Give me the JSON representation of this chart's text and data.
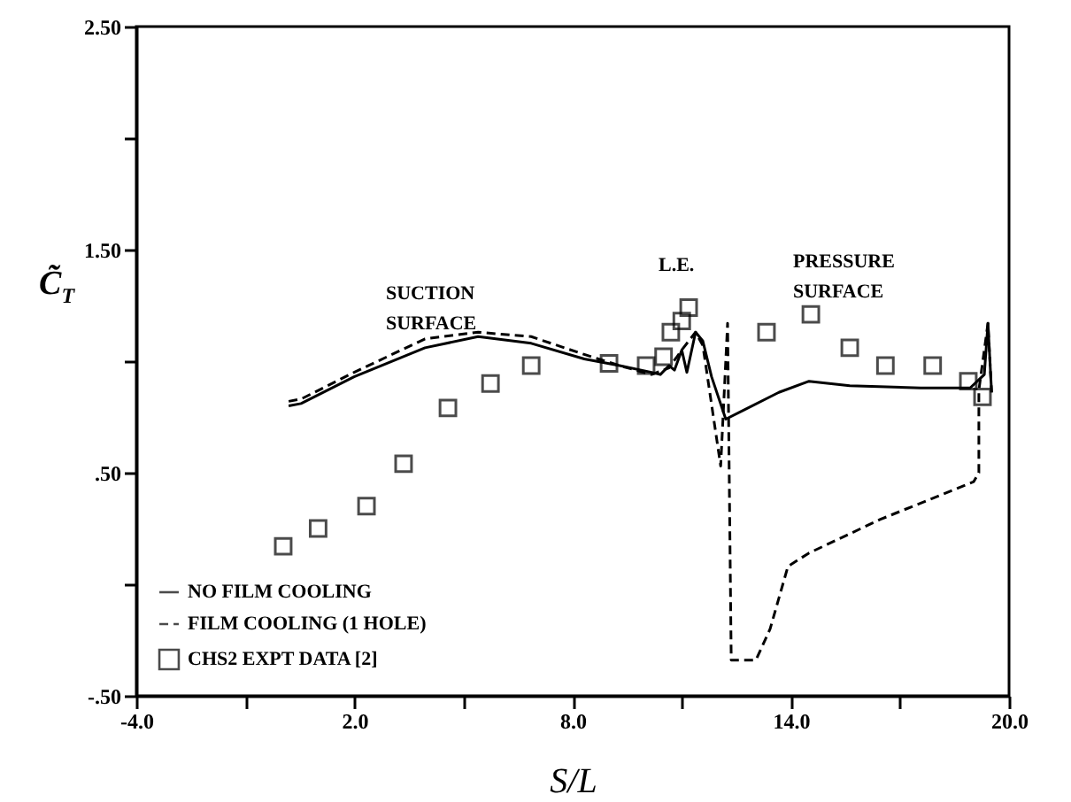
{
  "chart_data": {
    "type": "line",
    "xlabel": "S/L",
    "ylabel": "C̃$_{T}$",
    "xlim": [
      -4,
      20
    ],
    "xticks": [
      {
        "value": -4,
        "label": "-4.0"
      },
      {
        "value": -1,
        "label": null
      },
      {
        "value": 2,
        "label": "2.0"
      },
      {
        "value": 5,
        "label": null
      },
      {
        "value": 8,
        "label": "8.0"
      },
      {
        "value": 11,
        "label": null
      },
      {
        "value": 14,
        "label": "14.0"
      },
      {
        "value": 17,
        "label": null
      },
      {
        "value": 20,
        "label": "20.0"
      }
    ],
    "ylim": [
      -0.5,
      2.5
    ],
    "yticks": [
      {
        "value": -0.5,
        "label": "-.50"
      },
      {
        "value": 0,
        "label": null
      },
      {
        "value": 0.5,
        "label": ".50"
      },
      {
        "value": 1,
        "label": null
      },
      {
        "value": 1.5,
        "label": "1.50"
      },
      {
        "value": 2,
        "label": null
      },
      {
        "value": 2.5,
        "label": "2.50"
      }
    ],
    "legend": "bottom left",
    "annotations": [
      "SUCTION\nSURFACE",
      "L.E.",
      "PRESSURE\nSURFACE"
    ],
    "series": [
      {
        "name": "NO FILM COOLING",
        "line_style": "solid",
        "color": "#000000",
        "x": [
          0.19,
          0.53,
          1.99,
          3.94,
          5.4,
          6.86,
          8.32,
          9.29,
          10.17,
          10.41,
          10.65,
          10.8,
          11.0,
          11.14,
          11.38,
          11.58,
          11.82,
          12.21,
          12.7,
          13.67,
          14.5,
          15.62,
          17.57,
          18.93,
          19.32,
          19.42,
          19.52
        ],
        "values": [
          0.8,
          0.81,
          0.93,
          1.06,
          1.11,
          1.08,
          1.01,
          0.98,
          0.95,
          0.94,
          0.98,
          0.96,
          1.05,
          0.95,
          1.13,
          1.09,
          0.93,
          0.74,
          0.78,
          0.86,
          0.91,
          0.89,
          0.88,
          0.88,
          0.94,
          1.17,
          0.86
        ]
      },
      {
        "name": "FILM COOLING (1 HOLE)",
        "line_style": "dashed",
        "color": "#000000",
        "x": [
          0.19,
          0.53,
          1.99,
          3.94,
          5.4,
          6.86,
          8.32,
          9.29,
          10.17,
          10.65,
          11.0,
          11.38,
          11.58,
          12.07,
          12.26,
          12.36,
          13.04,
          13.43,
          13.92,
          14.5,
          16.45,
          19.03,
          19.17,
          19.17,
          19.42,
          19.52
        ],
        "values": [
          0.82,
          0.83,
          0.95,
          1.1,
          1.13,
          1.11,
          1.03,
          0.98,
          0.94,
          0.97,
          1.05,
          1.13,
          1.07,
          0.53,
          1.17,
          -0.34,
          -0.34,
          -0.2,
          0.08,
          0.14,
          0.29,
          0.46,
          0.5,
          0.87,
          1.17,
          0.86
        ]
      },
      {
        "name": "CHS2 EXPT DATA [2]",
        "type": "scatter",
        "marker": "square",
        "color": "#000000",
        "x": [
          0.04,
          1.0,
          2.33,
          3.35,
          4.57,
          5.74,
          6.86,
          9.0,
          10.02,
          10.5,
          10.7,
          11.0,
          11.19,
          13.33,
          14.55,
          15.62,
          16.6,
          17.9,
          18.88,
          19.27
        ],
        "values": [
          0.17,
          0.25,
          0.35,
          0.54,
          0.79,
          0.9,
          0.98,
          0.99,
          0.98,
          1.02,
          1.13,
          1.18,
          1.24,
          1.13,
          1.21,
          1.06,
          0.98,
          0.98,
          0.91,
          0.84
        ]
      }
    ]
  }
}
